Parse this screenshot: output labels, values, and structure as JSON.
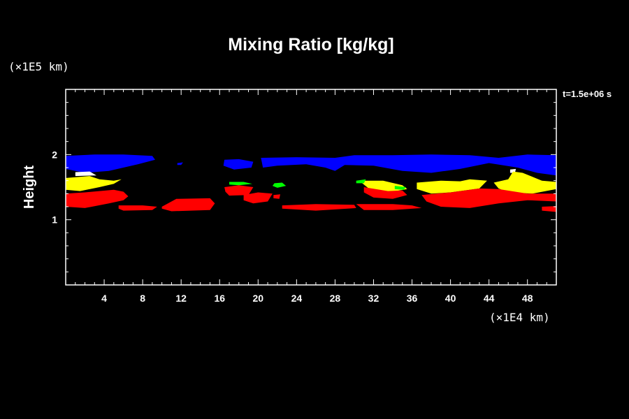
{
  "chart_data": {
    "type": "heatmap",
    "title": "Mixing Ratio [kg/kg]",
    "ylabel": "Height",
    "xunit": "(×1E4 km)",
    "yunit": "(×1E5 km)",
    "time_label": "t=1.5e+06 s",
    "xlim": [
      0,
      51
    ],
    "ylim": [
      0,
      3
    ],
    "xticks": [
      4,
      8,
      12,
      16,
      20,
      24,
      28,
      32,
      36,
      40,
      44,
      48
    ],
    "yticks": [
      1,
      2
    ],
    "colors": {
      "blue": "#0000ff",
      "green": "#00ff00",
      "yellow": "#ffff00",
      "red": "#ff0000",
      "white": "#ffffff"
    },
    "regions": [
      {
        "color": "blue",
        "points": [
          [
            0,
            1.98
          ],
          [
            3,
            2.0
          ],
          [
            6,
            2.0
          ],
          [
            9,
            1.98
          ],
          [
            9.3,
            1.92
          ],
          [
            7.5,
            1.85
          ],
          [
            4.5,
            1.75
          ],
          [
            2,
            1.72
          ],
          [
            0,
            1.78
          ]
        ]
      },
      {
        "color": "blue",
        "points": [
          [
            11.6,
            1.87
          ],
          [
            12.2,
            1.88
          ],
          [
            12,
            1.84
          ],
          [
            11.6,
            1.84
          ]
        ]
      },
      {
        "color": "blue",
        "points": [
          [
            16.5,
            1.92
          ],
          [
            18,
            1.93
          ],
          [
            19.5,
            1.89
          ],
          [
            19.3,
            1.8
          ],
          [
            17.5,
            1.77
          ],
          [
            16.4,
            1.83
          ]
        ]
      },
      {
        "color": "blue",
        "points": [
          [
            20.3,
            1.95
          ],
          [
            24,
            1.96
          ],
          [
            28,
            1.95
          ],
          [
            30,
            1.99
          ],
          [
            34,
            1.99
          ],
          [
            38,
            2.0
          ],
          [
            42,
            1.99
          ],
          [
            45,
            1.95
          ],
          [
            48,
            2.0
          ],
          [
            51,
            1.99
          ],
          [
            51,
            1.68
          ],
          [
            49,
            1.72
          ],
          [
            47,
            1.8
          ],
          [
            44,
            1.87
          ],
          [
            41,
            1.78
          ],
          [
            38,
            1.72
          ],
          [
            35,
            1.75
          ],
          [
            32,
            1.83
          ],
          [
            29,
            1.84
          ],
          [
            28,
            1.75
          ],
          [
            27,
            1.8
          ],
          [
            25,
            1.85
          ],
          [
            22,
            1.83
          ],
          [
            20.5,
            1.8
          ]
        ]
      },
      {
        "color": "white",
        "points": [
          [
            1,
            1.73
          ],
          [
            2.5,
            1.74
          ],
          [
            3.2,
            1.68
          ],
          [
            1,
            1.67
          ]
        ]
      },
      {
        "color": "white",
        "points": [
          [
            46.2,
            1.77
          ],
          [
            46.8,
            1.78
          ],
          [
            46.7,
            1.72
          ],
          [
            46.2,
            1.72
          ]
        ]
      },
      {
        "color": "yellow",
        "points": [
          [
            0,
            1.64
          ],
          [
            2.5,
            1.67
          ],
          [
            3.5,
            1.62
          ],
          [
            5,
            1.6
          ],
          [
            5.8,
            1.62
          ],
          [
            5,
            1.55
          ],
          [
            3.5,
            1.5
          ],
          [
            1.5,
            1.44
          ],
          [
            0,
            1.46
          ]
        ]
      },
      {
        "color": "yellow",
        "points": [
          [
            30.5,
            1.6
          ],
          [
            33,
            1.6
          ],
          [
            35,
            1.53
          ],
          [
            35.5,
            1.47
          ],
          [
            33.5,
            1.42
          ],
          [
            31.5,
            1.48
          ]
        ]
      },
      {
        "color": "yellow",
        "points": [
          [
            36.5,
            1.57
          ],
          [
            39,
            1.6
          ],
          [
            41,
            1.59
          ],
          [
            42,
            1.62
          ],
          [
            43.8,
            1.6
          ],
          [
            43,
            1.48
          ],
          [
            40,
            1.42
          ],
          [
            38,
            1.4
          ],
          [
            36.5,
            1.47
          ]
        ]
      },
      {
        "color": "yellow",
        "points": [
          [
            44.5,
            1.57
          ],
          [
            46,
            1.62
          ],
          [
            46.5,
            1.74
          ],
          [
            47.5,
            1.72
          ],
          [
            49.5,
            1.6
          ],
          [
            51,
            1.58
          ],
          [
            51,
            1.47
          ],
          [
            48.5,
            1.4
          ],
          [
            46,
            1.42
          ],
          [
            45,
            1.48
          ]
        ]
      },
      {
        "color": "green",
        "points": [
          [
            17,
            1.58
          ],
          [
            18.5,
            1.58
          ],
          [
            19.4,
            1.55
          ],
          [
            18,
            1.53
          ],
          [
            17,
            1.54
          ]
        ]
      },
      {
        "color": "green",
        "points": [
          [
            21.7,
            1.56
          ],
          [
            22.5,
            1.57
          ],
          [
            22.9,
            1.52
          ],
          [
            22,
            1.49
          ],
          [
            21.5,
            1.52
          ]
        ]
      },
      {
        "color": "green",
        "points": [
          [
            30.2,
            1.6
          ],
          [
            31.2,
            1.62
          ],
          [
            31,
            1.56
          ],
          [
            30.2,
            1.56
          ]
        ]
      },
      {
        "color": "green",
        "points": [
          [
            34.2,
            1.52
          ],
          [
            35.4,
            1.5
          ],
          [
            35.1,
            1.46
          ],
          [
            34.2,
            1.47
          ]
        ]
      },
      {
        "color": "red",
        "points": [
          [
            0,
            1.4
          ],
          [
            2,
            1.42
          ],
          [
            3.5,
            1.44
          ],
          [
            5,
            1.46
          ],
          [
            6,
            1.43
          ],
          [
            6.5,
            1.36
          ],
          [
            6,
            1.3
          ],
          [
            4.5,
            1.25
          ],
          [
            2,
            1.18
          ],
          [
            0,
            1.2
          ]
        ]
      },
      {
        "color": "red",
        "points": [
          [
            5.5,
            1.22
          ],
          [
            8,
            1.22
          ],
          [
            9.5,
            1.2
          ],
          [
            9,
            1.15
          ],
          [
            6,
            1.14
          ],
          [
            5.5,
            1.17
          ]
        ]
      },
      {
        "color": "red",
        "points": [
          [
            10,
            1.2
          ],
          [
            11.5,
            1.32
          ],
          [
            15,
            1.33
          ],
          [
            15.5,
            1.25
          ],
          [
            15,
            1.15
          ],
          [
            11,
            1.13
          ],
          [
            10,
            1.17
          ]
        ]
      },
      {
        "color": "red",
        "points": [
          [
            16.5,
            1.5
          ],
          [
            18,
            1.53
          ],
          [
            19.5,
            1.5
          ],
          [
            19,
            1.38
          ],
          [
            17,
            1.37
          ],
          [
            16.6,
            1.43
          ]
        ]
      },
      {
        "color": "red",
        "points": [
          [
            18.5,
            1.38
          ],
          [
            20,
            1.42
          ],
          [
            21.5,
            1.4
          ],
          [
            21,
            1.28
          ],
          [
            19.5,
            1.25
          ],
          [
            18.5,
            1.3
          ]
        ]
      },
      {
        "color": "red",
        "points": [
          [
            21.6,
            1.38
          ],
          [
            22.3,
            1.39
          ],
          [
            22.2,
            1.32
          ],
          [
            21.6,
            1.33
          ]
        ]
      },
      {
        "color": "red",
        "points": [
          [
            22.5,
            1.22
          ],
          [
            26,
            1.24
          ],
          [
            30,
            1.23
          ],
          [
            30.2,
            1.18
          ],
          [
            26,
            1.14
          ],
          [
            22.5,
            1.17
          ]
        ]
      },
      {
        "color": "red",
        "points": [
          [
            30.2,
            1.24
          ],
          [
            32,
            1.24
          ],
          [
            34,
            1.24
          ],
          [
            36,
            1.22
          ],
          [
            37,
            1.18
          ],
          [
            34,
            1.15
          ],
          [
            31,
            1.15
          ]
        ]
      },
      {
        "color": "red",
        "points": [
          [
            31,
            1.5
          ],
          [
            33.5,
            1.44
          ],
          [
            35,
            1.45
          ],
          [
            35.5,
            1.38
          ],
          [
            34,
            1.32
          ],
          [
            32,
            1.34
          ],
          [
            31,
            1.42
          ]
        ]
      },
      {
        "color": "red",
        "points": [
          [
            37,
            1.38
          ],
          [
            40,
            1.42
          ],
          [
            43,
            1.48
          ],
          [
            45,
            1.47
          ],
          [
            48,
            1.4
          ],
          [
            51,
            1.4
          ],
          [
            51,
            1.28
          ],
          [
            48,
            1.3
          ],
          [
            45,
            1.25
          ],
          [
            42,
            1.18
          ],
          [
            39,
            1.2
          ],
          [
            37.5,
            1.28
          ]
        ]
      },
      {
        "color": "red",
        "points": [
          [
            49.5,
            1.2
          ],
          [
            51,
            1.21
          ],
          [
            51,
            1.12
          ],
          [
            49.5,
            1.14
          ]
        ]
      }
    ]
  }
}
